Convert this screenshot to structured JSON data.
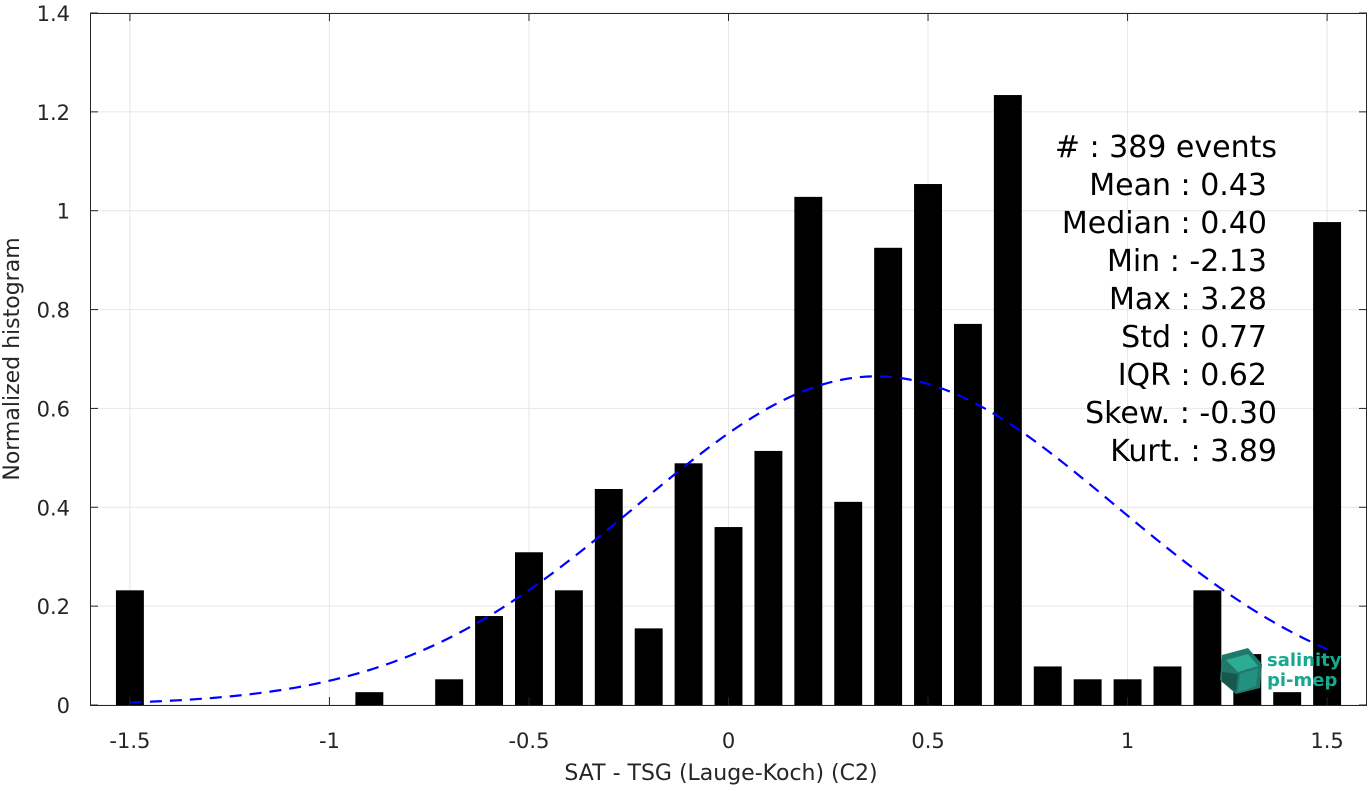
{
  "chart_data": {
    "type": "bar",
    "title": "",
    "xlabel": "SAT - TSG (Lauge-Koch) (C2)",
    "ylabel": "Normalized histogram",
    "xlim": [
      -1.6,
      1.6
    ],
    "ylim": [
      0,
      1.4
    ],
    "grid": true,
    "x_ticks": [
      -1.5,
      -1,
      -0.5,
      0,
      0.5,
      1,
      1.5
    ],
    "x_tick_labels": [
      "-1.5",
      "-1",
      "-0.5",
      "0",
      "0.5",
      "1",
      "1.5"
    ],
    "y_ticks": [
      0,
      0.2,
      0.4,
      0.6,
      0.8,
      1,
      1.2,
      1.4
    ],
    "y_tick_labels": [
      "0",
      "0.2",
      "0.4",
      "0.6",
      "0.8",
      "1",
      "1.2",
      "1.4"
    ],
    "bin_width": 0.1,
    "bar_color": "#000000",
    "bins": [
      {
        "x": -1.5,
        "y": 0.232
      },
      {
        "x": -0.9,
        "y": 0.026
      },
      {
        "x": -0.7,
        "y": 0.052
      },
      {
        "x": -0.6,
        "y": 0.18
      },
      {
        "x": -0.5,
        "y": 0.309
      },
      {
        "x": -0.4,
        "y": 0.232
      },
      {
        "x": -0.3,
        "y": 0.437
      },
      {
        "x": -0.2,
        "y": 0.155
      },
      {
        "x": -0.1,
        "y": 0.489
      },
      {
        "x": 0.0,
        "y": 0.36
      },
      {
        "x": 0.1,
        "y": 0.514
      },
      {
        "x": 0.2,
        "y": 1.028
      },
      {
        "x": 0.3,
        "y": 0.411
      },
      {
        "x": 0.4,
        "y": 0.925
      },
      {
        "x": 0.5,
        "y": 1.054
      },
      {
        "x": 0.6,
        "y": 0.771
      },
      {
        "x": 0.7,
        "y": 1.234
      },
      {
        "x": 0.8,
        "y": 0.078
      },
      {
        "x": 0.9,
        "y": 0.052
      },
      {
        "x": 1.0,
        "y": 0.052
      },
      {
        "x": 1.1,
        "y": 0.078
      },
      {
        "x": 1.2,
        "y": 0.232
      },
      {
        "x": 1.3,
        "y": 0.103
      },
      {
        "x": 1.4,
        "y": 0.026
      },
      {
        "x": 1.5,
        "y": 0.977
      }
    ],
    "fit_curve": {
      "style": "dashed",
      "color": "#0000ff",
      "mean": 0.37,
      "std": 0.6,
      "x_range": [
        -1.5,
        1.5
      ]
    },
    "stats": [
      "#  : 389 events",
      "Mean : 0.43",
      "Median : 0.40",
      "Min : -2.13",
      "Max : 3.28",
      "Std : 0.77",
      "IQR : 0.62",
      "Skew. : -0.30",
      "Kurt. : 3.89"
    ]
  },
  "logo": {
    "line1": "salinity",
    "line2": "pi-mep",
    "color": "#17a88e"
  }
}
